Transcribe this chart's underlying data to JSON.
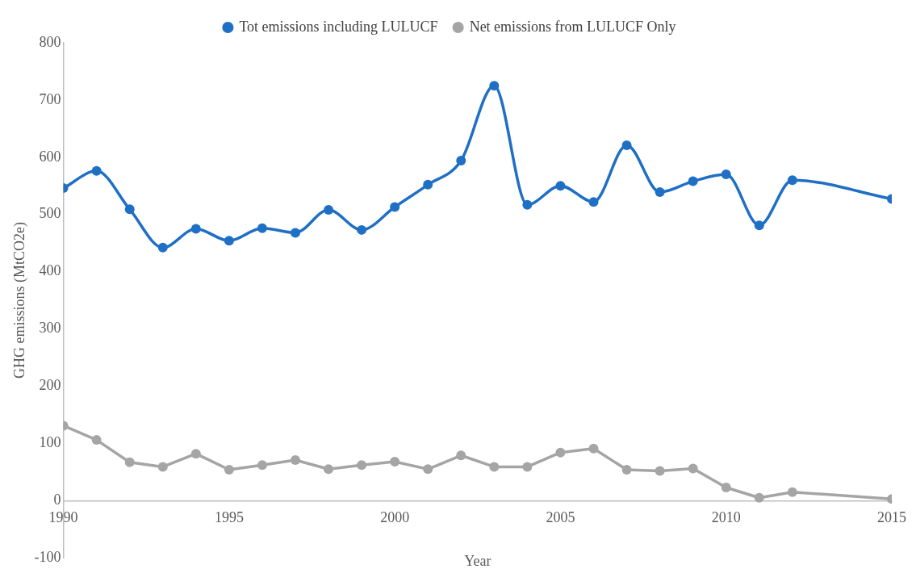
{
  "chart_data": {
    "type": "line",
    "xlabel": "Year",
    "ylabel": "GHG emissions (MtCO2e)",
    "series": [
      {
        "name": "Tot emissions including LULUCF",
        "color": "#1f6fc5",
        "x": [
          1990,
          1991,
          1992,
          1993,
          1994,
          1995,
          1996,
          1997,
          1998,
          1999,
          2000,
          2001,
          2002,
          2003,
          2004,
          2005,
          2006,
          2007,
          2008,
          2009,
          2010,
          2011,
          2012,
          2015
        ],
        "values": [
          546,
          576,
          509,
          442,
          475,
          454,
          476,
          468,
          508,
          473,
          513,
          552,
          594,
          725,
          517,
          550,
          522,
          621,
          539,
          558,
          570,
          481,
          560,
          527
        ]
      },
      {
        "name": "Net emissions from LULUCF Only",
        "color": "#a5a5a5",
        "x": [
          1990,
          1991,
          1992,
          1993,
          1994,
          1995,
          1996,
          1997,
          1998,
          1999,
          2000,
          2001,
          2002,
          2003,
          2004,
          2005,
          2006,
          2007,
          2008,
          2009,
          2010,
          2011,
          2012,
          2015
        ],
        "values": [
          131,
          106,
          67,
          59,
          82,
          54,
          62,
          71,
          55,
          62,
          68,
          55,
          79,
          59,
          59,
          84,
          91,
          54,
          52,
          56,
          23,
          5,
          15,
          3
        ]
      }
    ],
    "xlim": [
      1990,
      2015
    ],
    "xticks": [
      1990,
      1995,
      2000,
      2005,
      2010,
      2015
    ],
    "ylim": [
      -100,
      800
    ],
    "yticks": [
      -100,
      0,
      100,
      200,
      300,
      400,
      500,
      600,
      700,
      800
    ],
    "grid": false,
    "legend": "top",
    "marker": "circle",
    "line_style": "solid"
  }
}
